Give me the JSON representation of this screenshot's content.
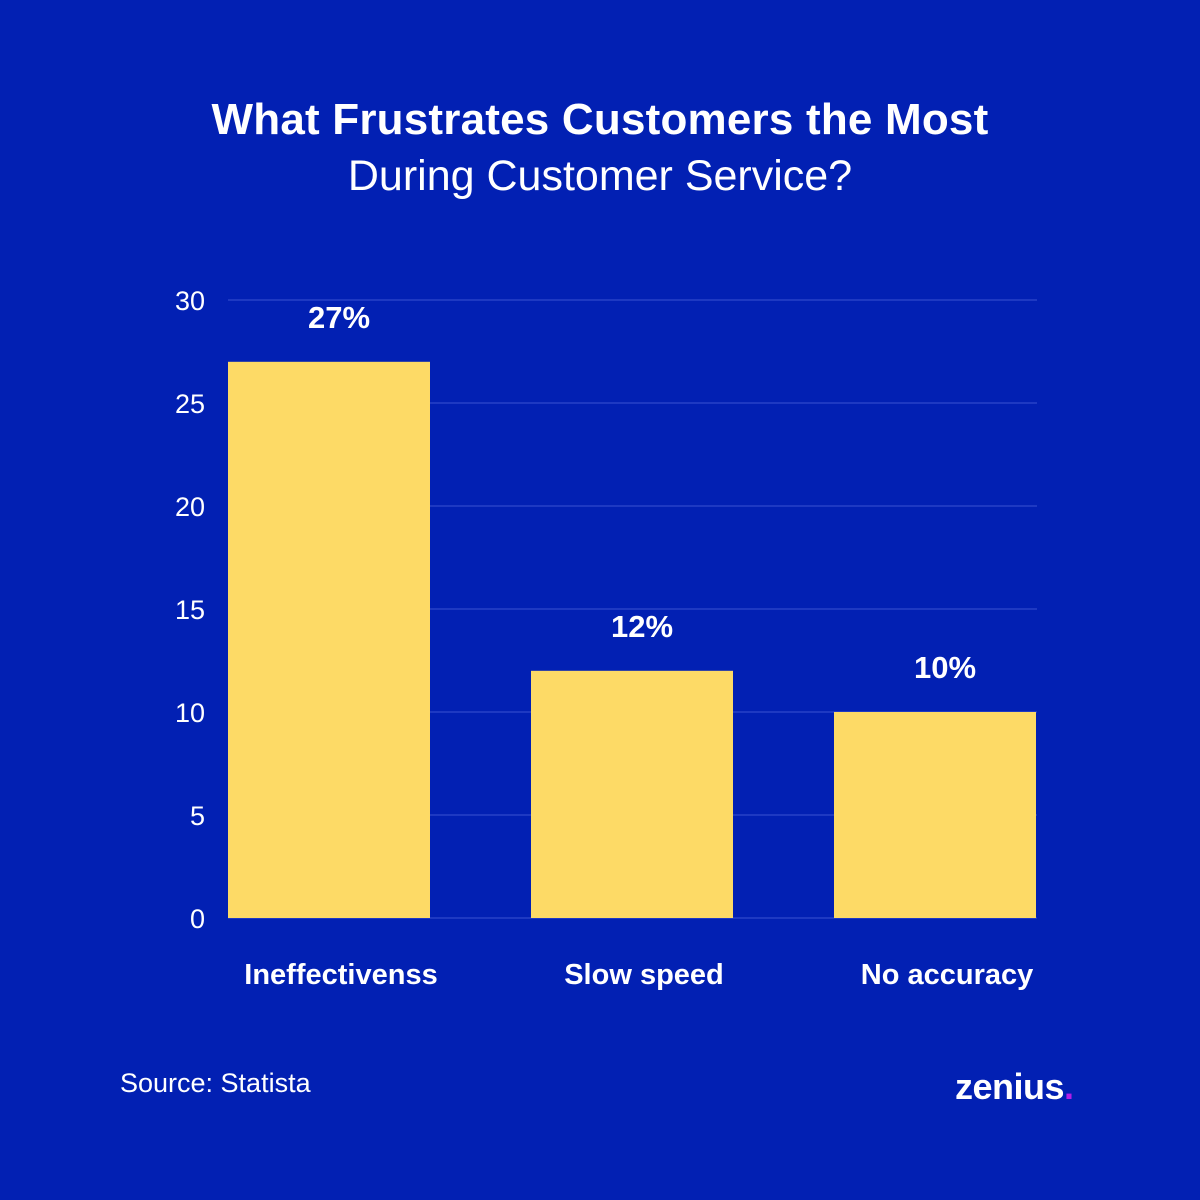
{
  "chart_data": {
    "type": "bar",
    "title": "What Frustrates Customers the Most",
    "subtitle": "During Customer Service?",
    "categories": [
      "Ineffectivenss",
      "Slow speed",
      "No accuracy"
    ],
    "values": [
      27,
      12,
      10
    ],
    "data_labels": [
      "27%",
      "12%",
      "10%"
    ],
    "ylim": [
      0,
      30
    ],
    "yticks": [
      "0",
      "5",
      "10",
      "15",
      "20",
      "25",
      "30"
    ],
    "grid": true,
    "bar_color": "#fdda66",
    "background_color": "#0220b3"
  },
  "footer": {
    "source": "Source: Statista",
    "logo_text": "zenius",
    "logo_dot": ".",
    "logo_dot_color": "#b31de6"
  }
}
